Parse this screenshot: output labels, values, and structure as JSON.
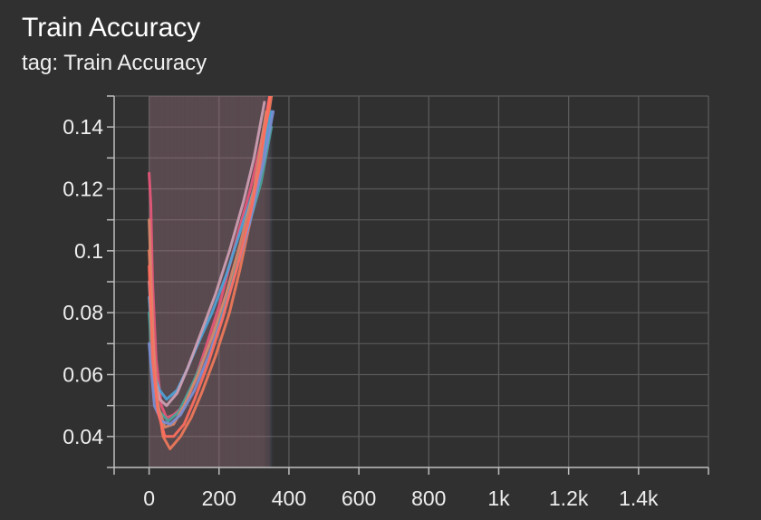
{
  "card": {
    "title": "Train Accuracy",
    "tag": "tag: Train Accuracy"
  },
  "colors": {
    "background": "#303030",
    "grid": "#5a5a5a",
    "axis": "#bdbdbd",
    "text": "#eeeeee"
  },
  "chart_data": {
    "type": "line",
    "title": "",
    "xlabel": "",
    "ylabel": "",
    "xlim": [
      -100,
      1600
    ],
    "ylim": [
      0.03,
      0.15
    ],
    "grid": true,
    "legend": "none",
    "x_ticks": [
      {
        "value": 0,
        "label": "0"
      },
      {
        "value": 200,
        "label": "200"
      },
      {
        "value": 400,
        "label": "400"
      },
      {
        "value": 600,
        "label": "600"
      },
      {
        "value": 800,
        "label": "800"
      },
      {
        "value": 1000,
        "label": "1k"
      },
      {
        "value": 1200,
        "label": "1.2k"
      },
      {
        "value": 1400,
        "label": "1.4k"
      }
    ],
    "y_ticks": [
      {
        "value": 0.04,
        "label": "0.04"
      },
      {
        "value": 0.06,
        "label": "0.06"
      },
      {
        "value": 0.08,
        "label": "0.08"
      },
      {
        "value": 0.1,
        "label": "0.1"
      },
      {
        "value": 0.12,
        "label": "0.12"
      },
      {
        "value": 0.14,
        "label": "0.14"
      }
    ],
    "series": [
      {
        "color": "#e8577a",
        "x": [
          0,
          5,
          10,
          20,
          35,
          50,
          70,
          100,
          130,
          160,
          200,
          230,
          260,
          290,
          320,
          345
        ],
        "y": [
          0.125,
          0.115,
          0.09,
          0.065,
          0.05,
          0.046,
          0.047,
          0.05,
          0.058,
          0.068,
          0.082,
          0.095,
          0.108,
          0.12,
          0.135,
          0.15
        ]
      },
      {
        "color": "#f0785a",
        "x": [
          0,
          10,
          20,
          40,
          60,
          90,
          120,
          150,
          190,
          230,
          260,
          290,
          320,
          350
        ],
        "y": [
          0.1,
          0.075,
          0.055,
          0.04,
          0.036,
          0.04,
          0.046,
          0.054,
          0.066,
          0.08,
          0.094,
          0.11,
          0.128,
          0.15
        ]
      },
      {
        "color": "#4da3d9",
        "x": [
          0,
          15,
          30,
          50,
          80,
          110,
          140,
          180,
          220,
          260,
          300,
          330,
          350
        ],
        "y": [
          0.085,
          0.06,
          0.055,
          0.052,
          0.055,
          0.062,
          0.07,
          0.08,
          0.092,
          0.106,
          0.12,
          0.134,
          0.145
        ]
      },
      {
        "color": "#cf9fb4",
        "x": [
          0,
          15,
          30,
          50,
          80,
          110,
          150,
          190,
          230,
          270,
          300,
          330
        ],
        "y": [
          0.09,
          0.06,
          0.052,
          0.05,
          0.054,
          0.062,
          0.074,
          0.086,
          0.1,
          0.116,
          0.13,
          0.148
        ]
      },
      {
        "color": "#4aa39a",
        "x": [
          0,
          15,
          30,
          55,
          85,
          120,
          160,
          200,
          240,
          280,
          320,
          350
        ],
        "y": [
          0.08,
          0.055,
          0.048,
          0.045,
          0.048,
          0.056,
          0.066,
          0.078,
          0.092,
          0.106,
          0.122,
          0.14
        ]
      },
      {
        "color": "#d9876a",
        "x": [
          0,
          12,
          25,
          45,
          70,
          100,
          140,
          180,
          220,
          260,
          300,
          335
        ],
        "y": [
          0.11,
          0.07,
          0.05,
          0.043,
          0.044,
          0.05,
          0.06,
          0.072,
          0.086,
          0.102,
          0.12,
          0.145
        ]
      },
      {
        "color": "#7b8fd6",
        "x": [
          0,
          15,
          35,
          60,
          90,
          130,
          170,
          210,
          250,
          290,
          330,
          355
        ],
        "y": [
          0.07,
          0.05,
          0.045,
          0.044,
          0.047,
          0.055,
          0.066,
          0.079,
          0.094,
          0.11,
          0.13,
          0.145
        ]
      },
      {
        "color": "#ff6e5e",
        "x": [
          0,
          10,
          25,
          45,
          70,
          100,
          130,
          170,
          210,
          250,
          290,
          320,
          345
        ],
        "y": [
          0.095,
          0.065,
          0.048,
          0.04,
          0.04,
          0.044,
          0.052,
          0.064,
          0.078,
          0.094,
          0.112,
          0.13,
          0.15
        ]
      }
    ]
  }
}
